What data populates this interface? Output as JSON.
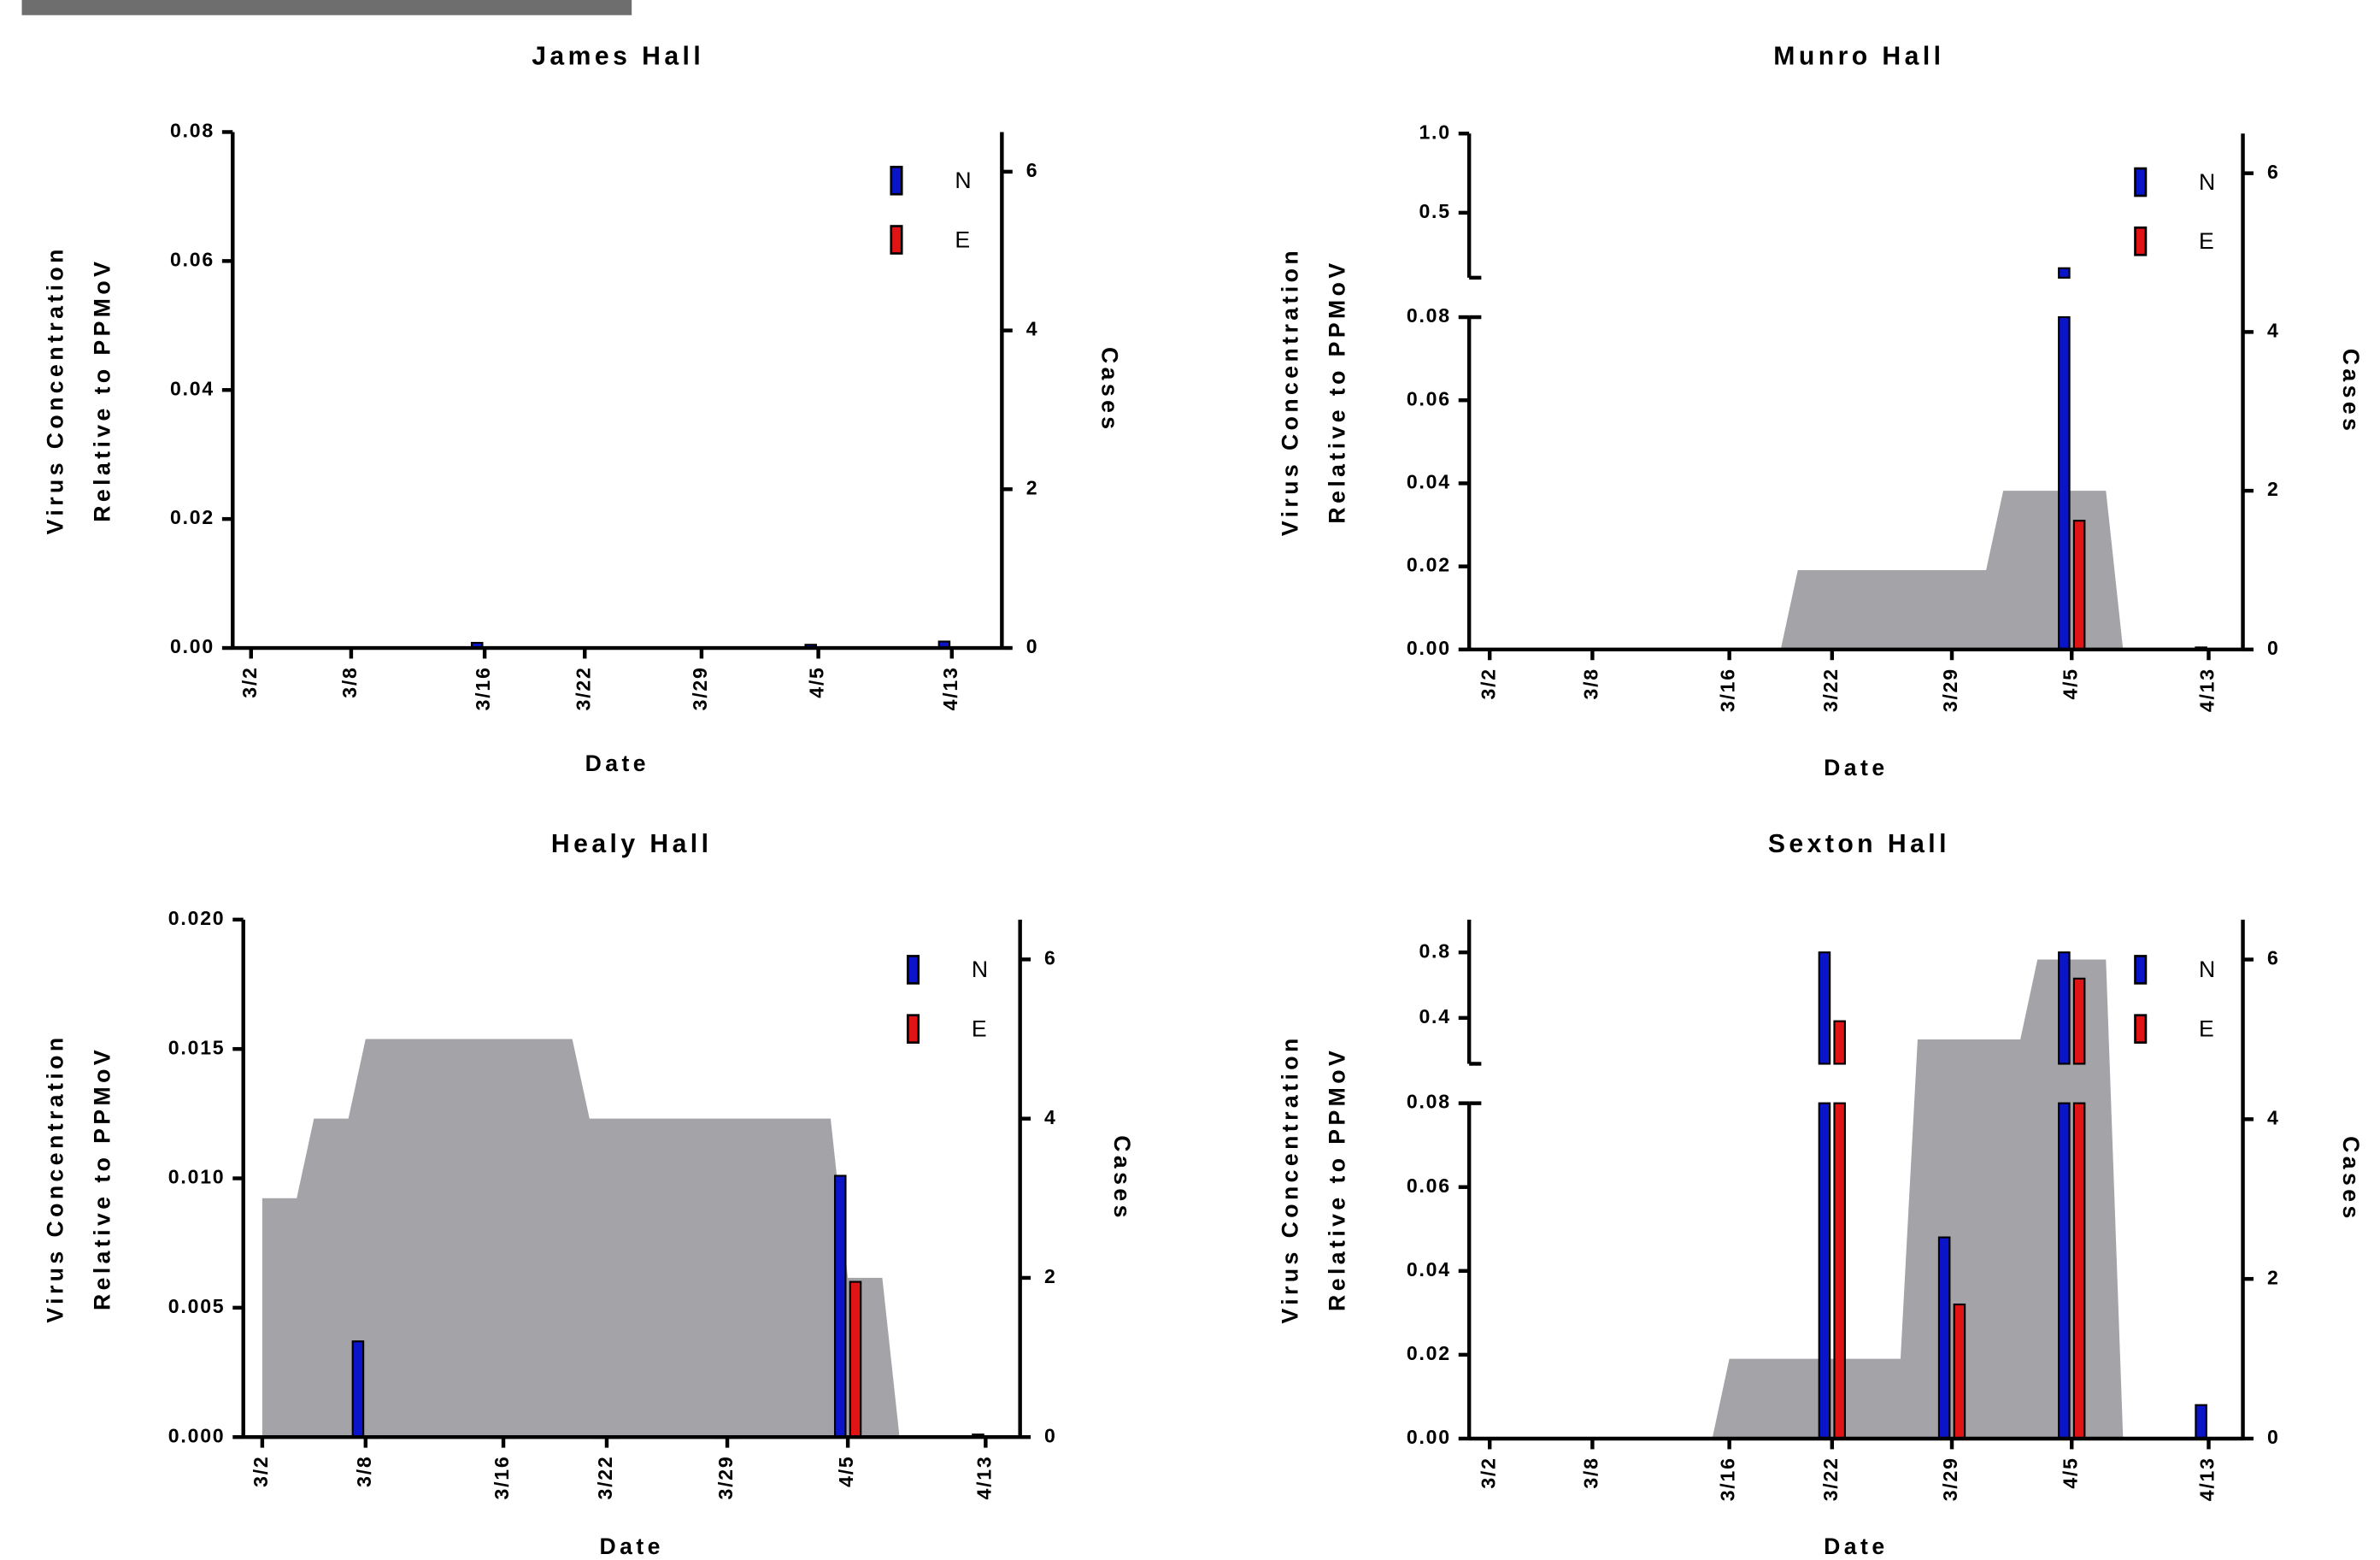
{
  "chart_data": [
    {
      "type": "bar",
      "title": "James Hall",
      "xlabel": "Date",
      "ylabel": [
        "Virus Concentration",
        "Relative to PPMoV"
      ],
      "y2label": "Cases",
      "x": [
        0,
        6,
        14,
        20,
        27,
        34,
        42
      ],
      "xlim": [
        -1.1,
        45
      ],
      "xticks": [
        {
          "value": 0,
          "label": "3/2"
        },
        {
          "value": 6,
          "label": "3/8"
        },
        {
          "value": 14,
          "label": "3/16"
        },
        {
          "value": 20,
          "label": "3/22"
        },
        {
          "value": 27,
          "label": "3/29"
        },
        {
          "value": 34,
          "label": "4/5"
        },
        {
          "value": 42,
          "label": "4/13"
        }
      ],
      "ylim": [
        0,
        0.08
      ],
      "yticks": [
        {
          "value": 0,
          "label": "0.00"
        },
        0.02,
        0.04,
        0.06,
        0.08
      ],
      "y2lim": [
        0,
        6.5
      ],
      "y2ticks": [
        0,
        2,
        4,
        6
      ],
      "series": [
        {
          "name": "N",
          "color": "#0a14c8",
          "values": [
            0,
            0,
            0.0008,
            0,
            0,
            0.0005,
            0.001
          ]
        },
        {
          "name": "E",
          "color": "#e01414",
          "values": [
            0,
            0,
            0,
            0,
            0,
            0,
            0
          ]
        }
      ]
    },
    {
      "type": "bar",
      "title": "Munro Hall",
      "xlabel": "Date",
      "ylabel": [
        "Virus Concentration",
        "Relative to PPMoV"
      ],
      "y2label": "Cases",
      "x": [
        0,
        6,
        14,
        20,
        27,
        34,
        42
      ],
      "xlim": [
        -1.2,
        44
      ],
      "xticks": [
        {
          "value": 0,
          "label": "3/2"
        },
        {
          "value": 6,
          "label": "3/8"
        },
        {
          "value": 14,
          "label": "3/16"
        },
        {
          "value": 20,
          "label": "3/22"
        },
        {
          "value": 27,
          "label": "3/29"
        },
        {
          "value": 34,
          "label": "4/5"
        },
        {
          "value": 42,
          "label": "4/13"
        }
      ],
      "ylim": [
        0,
        0.08
      ],
      "yticks": [
        {
          "value": 0,
          "label": "0.00"
        },
        0.02,
        0.04,
        0.06,
        0.08
      ],
      "ylim_upper": [
        0.09,
        1.0
      ],
      "yticks_upper": [
        0.5,
        {
          "value": 1,
          "label": "1.0"
        }
      ],
      "y2lim": [
        0,
        6.5
      ],
      "y2ticks": [
        0,
        2,
        4,
        6
      ],
      "series": [
        {
          "name": "N",
          "color": "#0a14c8",
          "values": [
            0,
            0,
            0,
            0,
            0,
            0.15,
            0.0005
          ]
        },
        {
          "name": "E",
          "color": "#e01414",
          "values": [
            0,
            0,
            0,
            0,
            0,
            0.031,
            0
          ]
        }
      ],
      "area": {
        "x": [
          17,
          18,
          29,
          30,
          36,
          37
        ],
        "values": [
          0,
          1,
          1,
          2,
          2,
          0
        ],
        "color": "#a4a3a8"
      }
    },
    {
      "type": "bar",
      "title": "Healy Hall",
      "xlabel": "Date",
      "ylabel": [
        "Virus Concentration",
        "Relative to PPMoV"
      ],
      "y2label": "Cases",
      "x": [
        0,
        6,
        14,
        20,
        27,
        34,
        42
      ],
      "xlim": [
        -1.1,
        44
      ],
      "xticks": [
        {
          "value": 0,
          "label": "3/2"
        },
        {
          "value": 6,
          "label": "3/8"
        },
        {
          "value": 14,
          "label": "3/16"
        },
        {
          "value": 20,
          "label": "3/22"
        },
        {
          "value": 27,
          "label": "3/29"
        },
        {
          "value": 34,
          "label": "4/5"
        },
        {
          "value": 42,
          "label": "4/13"
        }
      ],
      "ylim": [
        0,
        0.02
      ],
      "yticks": [
        {
          "value": 0,
          "label": "0.000"
        },
        0.005,
        {
          "value": 0.01,
          "label": "0.010"
        },
        0.015,
        {
          "value": 0.02,
          "label": "0.020"
        }
      ],
      "y2lim": [
        0,
        6.5
      ],
      "y2ticks": [
        0,
        2,
        4,
        6
      ],
      "series": [
        {
          "name": "N",
          "color": "#0a14c8",
          "values": [
            0,
            0.0037,
            0,
            0,
            0,
            0.0101,
            0.0001
          ]
        },
        {
          "name": "E",
          "color": "#e01414",
          "values": [
            0,
            0,
            0,
            0,
            0,
            0.006,
            0
          ]
        }
      ],
      "area": {
        "x": [
          0,
          2,
          3,
          5,
          6,
          18,
          19,
          33,
          34,
          36,
          37
        ],
        "values": [
          3,
          3,
          4,
          4,
          5,
          5,
          4,
          4,
          2,
          2,
          0
        ],
        "color": "#a4a3a8"
      }
    },
    {
      "type": "bar",
      "title": "Sexton Hall",
      "xlabel": "Date",
      "ylabel": [
        "Virus Concentration",
        "Relative to PPMoV"
      ],
      "y2label": "Cases",
      "x": [
        0,
        6,
        14,
        20,
        27,
        34,
        42
      ],
      "xlim": [
        -1.2,
        44
      ],
      "xticks": [
        {
          "value": 0,
          "label": "3/2"
        },
        {
          "value": 6,
          "label": "3/8"
        },
        {
          "value": 14,
          "label": "3/16"
        },
        {
          "value": 20,
          "label": "3/22"
        },
        {
          "value": 27,
          "label": "3/29"
        },
        {
          "value": 34,
          "label": "4/5"
        },
        {
          "value": 42,
          "label": "4/13"
        }
      ],
      "ylim": [
        0,
        0.08
      ],
      "yticks": [
        {
          "value": 0,
          "label": "0.00"
        },
        0.02,
        0.04,
        0.06,
        0.08
      ],
      "ylim_upper": [
        0.12,
        1.0
      ],
      "yticks_upper": [
        0.4,
        0.8
      ],
      "y2lim": [
        0,
        6.5
      ],
      "y2ticks": [
        0,
        2,
        4,
        6
      ],
      "series": [
        {
          "name": "N",
          "color": "#0a14c8",
          "values": [
            0,
            0,
            0,
            0.8,
            0.048,
            0.8,
            0.008
          ]
        },
        {
          "name": "E",
          "color": "#e01414",
          "values": [
            0,
            0,
            0,
            0.38,
            0.032,
            0.64,
            0
          ]
        }
      ],
      "area": {
        "x": [
          13,
          14,
          24,
          25,
          31,
          32,
          36,
          37
        ],
        "values": [
          0,
          1,
          1,
          5,
          5,
          6,
          6,
          0
        ],
        "color": "#a4a3a8"
      }
    }
  ]
}
